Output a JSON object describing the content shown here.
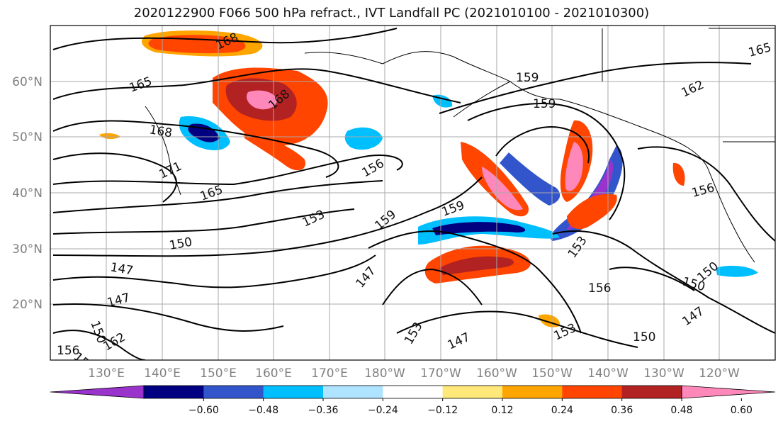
{
  "title": "2020122900 F066 500 hPa refract., IVT Landfall PC (2021010100 - 2021010300)",
  "lat_labels": [
    "60°N",
    "50°N",
    "40°N",
    "30°N",
    "20°N"
  ],
  "lon_labels": [
    "130°E",
    "140°E",
    "150°E",
    "160°E",
    "170°E",
    "180°W",
    "170°W",
    "160°W",
    "150°W",
    "140°W",
    "130°W",
    "120°W"
  ],
  "colorbar": {
    "colors": [
      "#9933cc",
      "#000080",
      "#3355cc",
      "#00bfff",
      "#aee4ff",
      "#ffffff",
      "#ffe87a",
      "#ffa500",
      "#ff4500",
      "#b22222",
      "#ff88bb"
    ],
    "ticks": [
      "−0.60",
      "−0.48",
      "−0.36",
      "−0.24",
      "−0.12",
      "0.12",
      "0.24",
      "0.36",
      "0.48",
      "0.60"
    ]
  },
  "contour_labels": [
    "168",
    "165",
    "159",
    "159",
    "162",
    "165",
    "168",
    "168",
    "165",
    "171",
    "156",
    "159",
    "159",
    "153",
    "150",
    "147",
    "147",
    "150",
    "162",
    "156",
    "147",
    "153",
    "147",
    "150",
    "150",
    "153",
    "156",
    "150",
    "147",
    "153",
    "150",
    "156"
  ]
}
